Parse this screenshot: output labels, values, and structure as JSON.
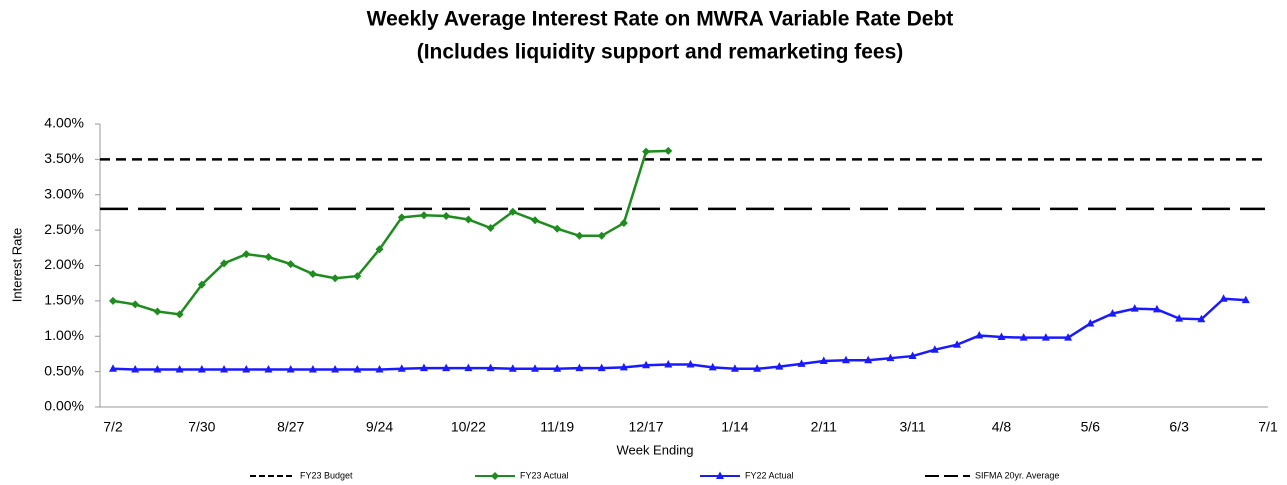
{
  "chart_data": {
    "type": "line",
    "title": "Weekly Average Interest Rate on MWRA Variable Rate Debt",
    "subtitle": "(Includes liquidity support and remarketing fees)",
    "y_label": "Interest Rate",
    "x_label": "Week Ending",
    "categories": [
      "7/2",
      null,
      null,
      null,
      "7/30",
      null,
      null,
      null,
      "8/27",
      null,
      null,
      null,
      "9/24",
      null,
      null,
      null,
      "10/22",
      null,
      null,
      null,
      "11/19",
      null,
      null,
      null,
      "12/17",
      null,
      null,
      null,
      "1/14",
      null,
      null,
      null,
      "2/11",
      null,
      null,
      null,
      "3/11",
      null,
      null,
      null,
      "4/8",
      null,
      null,
      null,
      "5/6",
      null,
      null,
      null,
      "6/3",
      null,
      null,
      null,
      "7/1"
    ],
    "series": [
      {
        "name": "FY23 Actual",
        "color": "#1e8c1e",
        "marker": "diamond",
        "values": [
          1.5,
          1.45,
          1.35,
          1.31,
          1.73,
          2.03,
          2.16,
          2.12,
          2.02,
          1.88,
          1.82,
          1.85,
          2.23,
          2.68,
          2.71,
          2.7,
          2.65,
          2.53,
          2.76,
          2.64,
          2.52,
          2.42,
          2.42,
          2.6,
          3.61,
          3.62,
          null,
          null,
          null,
          null,
          null,
          null,
          null,
          null,
          null,
          null,
          null,
          null,
          null,
          null,
          null,
          null,
          null,
          null,
          null,
          null,
          null,
          null,
          null,
          null,
          null,
          null,
          null
        ]
      },
      {
        "name": "FY22 Actual",
        "color": "#1a1aff",
        "marker": "triangle",
        "values": [
          0.54,
          0.53,
          0.53,
          0.53,
          0.53,
          0.53,
          0.53,
          0.53,
          0.53,
          0.53,
          0.53,
          0.53,
          0.53,
          0.54,
          0.55,
          0.55,
          0.55,
          0.55,
          0.54,
          0.54,
          0.54,
          0.55,
          0.55,
          0.56,
          0.59,
          0.6,
          0.6,
          0.56,
          0.54,
          0.54,
          0.57,
          0.61,
          0.65,
          0.66,
          0.66,
          0.69,
          0.72,
          0.81,
          0.88,
          1.01,
          0.99,
          0.98,
          0.98,
          0.98,
          1.18,
          1.32,
          1.39,
          1.38,
          1.25,
          1.24,
          1.53,
          1.51,
          null
        ]
      }
    ],
    "reference_lines": [
      {
        "name": "FY23 Budget",
        "value": 3.5,
        "color": "#000000",
        "dash": "short"
      },
      {
        "name": "SIFMA 20yr. Average",
        "value": 2.8,
        "color": "#000000",
        "dash": "long"
      }
    ],
    "ylim": [
      0,
      4
    ],
    "yticks": [
      {
        "value": 0,
        "label": "0.00%"
      },
      {
        "value": 0.5,
        "label": "0.50%"
      },
      {
        "value": 1,
        "label": "1.00%"
      },
      {
        "value": 1.5,
        "label": "1.50%"
      },
      {
        "value": 2,
        "label": "2.00%"
      },
      {
        "value": 2.5,
        "label": "2.50%"
      },
      {
        "value": 3,
        "label": "3.00%"
      },
      {
        "value": 3.5,
        "label": "3.50%"
      },
      {
        "value": 4,
        "label": "4.00%"
      }
    ],
    "grid": false,
    "legend": "bottom"
  }
}
